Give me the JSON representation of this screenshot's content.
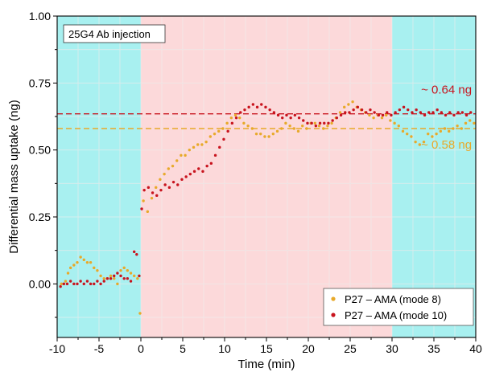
{
  "chart_data": {
    "type": "scatter",
    "xlabel": "Time (min)",
    "ylabel": "Differential mass uptake (ng)",
    "xlim": [
      -10,
      40
    ],
    "ylim": [
      -0.2,
      1.0
    ],
    "xticks": [
      -10,
      -5,
      0,
      5,
      10,
      15,
      20,
      25,
      30,
      35,
      40
    ],
    "xtick_labels": [
      "-10",
      "-5",
      "0",
      "5",
      "10",
      "15",
      "20",
      "25",
      "30",
      "35",
      "40"
    ],
    "yticks": [
      0.0,
      0.25,
      0.5,
      0.75,
      1.0
    ],
    "ytick_labels": [
      "0.00",
      "0.25",
      "0.50",
      "0.75",
      "1.00"
    ],
    "grid": true,
    "legend_position": "bottom-right",
    "regions": [
      {
        "x0": -10,
        "x1": 0,
        "color": "#a8f0f0"
      },
      {
        "x0": 0,
        "x1": 30,
        "color": "#fcd9da"
      },
      {
        "x0": 30,
        "x1": 40,
        "color": "#a8f0f0"
      }
    ],
    "annotations": [
      {
        "text": "25G4 Ab injection",
        "boxed": true
      },
      {
        "text": "~ 0.64 ng",
        "color": "#c8141e",
        "x": 36.5,
        "y": 0.71
      },
      {
        "text": "~ 0.58 ng",
        "color": "#e8a92a",
        "x": 36.5,
        "y": 0.505
      }
    ],
    "hlines": [
      {
        "y": 0.635,
        "color": "#c8141e",
        "dash": true
      },
      {
        "y": 0.58,
        "color": "#e8a92a",
        "dash": true
      }
    ],
    "series": [
      {
        "name": "P27 – AMA (mode 8)",
        "color": "#e8a92a",
        "points": [
          [
            -9.5,
            0.0
          ],
          [
            -9.0,
            0.01
          ],
          [
            -8.7,
            0.04
          ],
          [
            -8.4,
            0.06
          ],
          [
            -8.0,
            0.07
          ],
          [
            -7.6,
            0.08
          ],
          [
            -7.2,
            0.1
          ],
          [
            -6.8,
            0.09
          ],
          [
            -6.4,
            0.08
          ],
          [
            -6.0,
            0.08
          ],
          [
            -5.6,
            0.06
          ],
          [
            -5.2,
            0.05
          ],
          [
            -4.8,
            0.03
          ],
          [
            -4.4,
            0.02
          ],
          [
            -4.0,
            0.02
          ],
          [
            -3.6,
            0.03
          ],
          [
            -3.2,
            0.02
          ],
          [
            -2.8,
            0.0
          ],
          [
            -2.4,
            0.05
          ],
          [
            -2.0,
            0.06
          ],
          [
            -1.6,
            0.05
          ],
          [
            -1.2,
            0.04
          ],
          [
            -0.8,
            0.03
          ],
          [
            -0.4,
            0.02
          ],
          [
            -0.1,
            -0.11
          ],
          [
            0.3,
            0.31
          ],
          [
            0.8,
            0.27
          ],
          [
            1.3,
            0.32
          ],
          [
            1.8,
            0.36
          ],
          [
            2.3,
            0.39
          ],
          [
            2.8,
            0.41
          ],
          [
            3.3,
            0.43
          ],
          [
            3.8,
            0.44
          ],
          [
            4.3,
            0.46
          ],
          [
            4.8,
            0.48
          ],
          [
            5.3,
            0.48
          ],
          [
            5.8,
            0.5
          ],
          [
            6.3,
            0.51
          ],
          [
            6.8,
            0.52
          ],
          [
            7.3,
            0.52
          ],
          [
            7.8,
            0.53
          ],
          [
            8.3,
            0.55
          ],
          [
            8.8,
            0.56
          ],
          [
            9.3,
            0.57
          ],
          [
            9.8,
            0.58
          ],
          [
            10.3,
            0.6
          ],
          [
            10.8,
            0.62
          ],
          [
            11.3,
            0.63
          ],
          [
            11.8,
            0.62
          ],
          [
            12.3,
            0.6
          ],
          [
            12.8,
            0.59
          ],
          [
            13.3,
            0.58
          ],
          [
            13.8,
            0.56
          ],
          [
            14.3,
            0.56
          ],
          [
            14.8,
            0.55
          ],
          [
            15.3,
            0.55
          ],
          [
            15.8,
            0.56
          ],
          [
            16.3,
            0.57
          ],
          [
            16.8,
            0.58
          ],
          [
            17.3,
            0.6
          ],
          [
            17.8,
            0.59
          ],
          [
            18.3,
            0.58
          ],
          [
            18.8,
            0.57
          ],
          [
            19.3,
            0.59
          ],
          [
            19.8,
            0.58
          ],
          [
            20.3,
            0.6
          ],
          [
            20.8,
            0.6
          ],
          [
            21.3,
            0.59
          ],
          [
            21.8,
            0.58
          ],
          [
            22.3,
            0.59
          ],
          [
            22.8,
            0.6
          ],
          [
            23.3,
            0.62
          ],
          [
            23.8,
            0.64
          ],
          [
            24.3,
            0.66
          ],
          [
            24.8,
            0.67
          ],
          [
            25.3,
            0.68
          ],
          [
            25.8,
            0.66
          ],
          [
            26.3,
            0.65
          ],
          [
            26.8,
            0.64
          ],
          [
            27.3,
            0.63
          ],
          [
            27.8,
            0.62
          ],
          [
            28.3,
            0.63
          ],
          [
            28.8,
            0.62
          ],
          [
            29.3,
            0.63
          ],
          [
            29.8,
            0.61
          ],
          [
            30.3,
            0.6
          ],
          [
            30.8,
            0.59
          ],
          [
            31.3,
            0.57
          ],
          [
            31.8,
            0.56
          ],
          [
            32.3,
            0.55
          ],
          [
            32.8,
            0.53
          ],
          [
            33.3,
            0.52
          ],
          [
            33.8,
            0.53
          ],
          [
            34.3,
            0.56
          ],
          [
            34.8,
            0.55
          ],
          [
            35.3,
            0.56
          ],
          [
            35.8,
            0.57
          ],
          [
            36.3,
            0.58
          ],
          [
            36.8,
            0.57
          ],
          [
            37.3,
            0.58
          ],
          [
            37.8,
            0.59
          ],
          [
            38.3,
            0.58
          ],
          [
            38.8,
            0.6
          ],
          [
            39.3,
            0.61
          ],
          [
            39.8,
            0.6
          ]
        ]
      },
      {
        "name": "P27 – AMA (mode 10)",
        "color": "#c8141e",
        "points": [
          [
            -9.6,
            -0.01
          ],
          [
            -9.2,
            0.0
          ],
          [
            -8.8,
            0.0
          ],
          [
            -8.4,
            0.01
          ],
          [
            -8.0,
            0.0
          ],
          [
            -7.6,
            0.0
          ],
          [
            -7.2,
            0.01
          ],
          [
            -6.8,
            0.0
          ],
          [
            -6.4,
            0.01
          ],
          [
            -6.0,
            0.0
          ],
          [
            -5.6,
            0.0
          ],
          [
            -5.2,
            0.01
          ],
          [
            -4.8,
            0.0
          ],
          [
            -4.4,
            0.01
          ],
          [
            -4.0,
            0.02
          ],
          [
            -3.6,
            0.02
          ],
          [
            -3.2,
            0.03
          ],
          [
            -2.8,
            0.04
          ],
          [
            -2.4,
            0.03
          ],
          [
            -2.0,
            0.02
          ],
          [
            -1.6,
            0.02
          ],
          [
            -1.2,
            0.01
          ],
          [
            -0.8,
            0.12
          ],
          [
            -0.5,
            0.11
          ],
          [
            -0.2,
            0.03
          ],
          [
            0.1,
            0.28
          ],
          [
            0.4,
            0.35
          ],
          [
            0.9,
            0.36
          ],
          [
            1.4,
            0.34
          ],
          [
            1.9,
            0.33
          ],
          [
            2.4,
            0.35
          ],
          [
            2.9,
            0.37
          ],
          [
            3.4,
            0.36
          ],
          [
            3.9,
            0.38
          ],
          [
            4.4,
            0.37
          ],
          [
            4.9,
            0.39
          ],
          [
            5.4,
            0.4
          ],
          [
            5.9,
            0.41
          ],
          [
            6.4,
            0.42
          ],
          [
            6.9,
            0.43
          ],
          [
            7.4,
            0.42
          ],
          [
            7.9,
            0.44
          ],
          [
            8.4,
            0.45
          ],
          [
            8.9,
            0.48
          ],
          [
            9.4,
            0.51
          ],
          [
            9.9,
            0.54
          ],
          [
            10.4,
            0.57
          ],
          [
            10.9,
            0.6
          ],
          [
            11.4,
            0.62
          ],
          [
            11.9,
            0.64
          ],
          [
            12.4,
            0.65
          ],
          [
            12.9,
            0.66
          ],
          [
            13.4,
            0.67
          ],
          [
            13.9,
            0.66
          ],
          [
            14.4,
            0.67
          ],
          [
            14.9,
            0.66
          ],
          [
            15.4,
            0.65
          ],
          [
            15.9,
            0.64
          ],
          [
            16.4,
            0.63
          ],
          [
            16.9,
            0.62
          ],
          [
            17.4,
            0.63
          ],
          [
            17.9,
            0.62
          ],
          [
            18.4,
            0.63
          ],
          [
            18.9,
            0.62
          ],
          [
            19.4,
            0.61
          ],
          [
            19.9,
            0.6
          ],
          [
            20.4,
            0.6
          ],
          [
            20.9,
            0.59
          ],
          [
            21.4,
            0.6
          ],
          [
            21.9,
            0.6
          ],
          [
            22.4,
            0.6
          ],
          [
            22.9,
            0.61
          ],
          [
            23.4,
            0.62
          ],
          [
            23.9,
            0.63
          ],
          [
            24.4,
            0.64
          ],
          [
            24.9,
            0.64
          ],
          [
            25.4,
            0.65
          ],
          [
            25.9,
            0.66
          ],
          [
            26.4,
            0.65
          ],
          [
            26.9,
            0.64
          ],
          [
            27.4,
            0.65
          ],
          [
            27.9,
            0.64
          ],
          [
            28.4,
            0.63
          ],
          [
            28.9,
            0.63
          ],
          [
            29.4,
            0.64
          ],
          [
            29.9,
            0.63
          ],
          [
            30.4,
            0.64
          ],
          [
            30.9,
            0.65
          ],
          [
            31.4,
            0.66
          ],
          [
            31.9,
            0.65
          ],
          [
            32.4,
            0.64
          ],
          [
            32.9,
            0.65
          ],
          [
            33.4,
            0.64
          ],
          [
            33.9,
            0.63
          ],
          [
            34.4,
            0.64
          ],
          [
            34.9,
            0.64
          ],
          [
            35.4,
            0.65
          ],
          [
            35.9,
            0.64
          ],
          [
            36.4,
            0.63
          ],
          [
            36.9,
            0.64
          ],
          [
            37.4,
            0.63
          ],
          [
            37.9,
            0.64
          ],
          [
            38.4,
            0.64
          ],
          [
            38.9,
            0.63
          ],
          [
            39.4,
            0.64
          ]
        ]
      }
    ]
  }
}
